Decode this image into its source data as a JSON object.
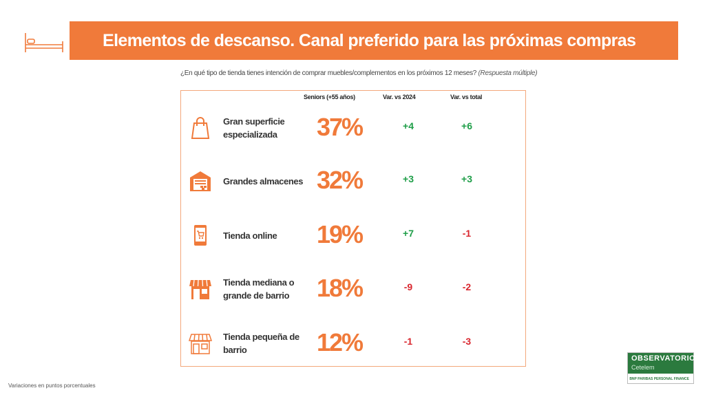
{
  "header": {
    "title": "Elementos de descanso. Canal preferido para las próximas compras"
  },
  "question": {
    "text": "¿En qué tipo de tienda tienes intención de comprar muebles/complementos en los próximos 12 meses?",
    "note": "(Respuesta múltiple)"
  },
  "colors": {
    "accent": "#f07a3a",
    "positive": "#1e9e48",
    "negative": "#d9262e"
  },
  "chart_data": {
    "type": "table",
    "columns": [
      "Seniors (+55 años)",
      "Var. vs 2024",
      "Var. vs total"
    ],
    "rows": [
      {
        "icon": "shopping-bag-icon",
        "label_lines": [
          "Gran superficie",
          "especializada"
        ],
        "value": "37%",
        "var_2024": "+4",
        "var_total": "+6"
      },
      {
        "icon": "warehouse-icon",
        "label_lines": [
          "Grandes almacenes"
        ],
        "value": "32%",
        "var_2024": "+3",
        "var_total": "+3"
      },
      {
        "icon": "mobile-cart-icon",
        "label_lines": [
          "Tienda online"
        ],
        "value": "19%",
        "var_2024": "+7",
        "var_total": "-1"
      },
      {
        "icon": "storefront-icon",
        "label_lines": [
          "Tienda mediana o",
          "grande de barrio"
        ],
        "value": "18%",
        "var_2024": "-9",
        "var_total": "-2"
      },
      {
        "icon": "small-shop-icon",
        "label_lines": [
          "Tienda pequeña de",
          "barrio"
        ],
        "value": "12%",
        "var_2024": "-1",
        "var_total": "-3"
      }
    ]
  },
  "footnote": "Variaciones en puntos porcentuales",
  "logo": {
    "main": "OBSERVATORIO",
    "sub": "Cetelem",
    "partner": "BNP PARIBAS PERSONAL FINANCE"
  }
}
